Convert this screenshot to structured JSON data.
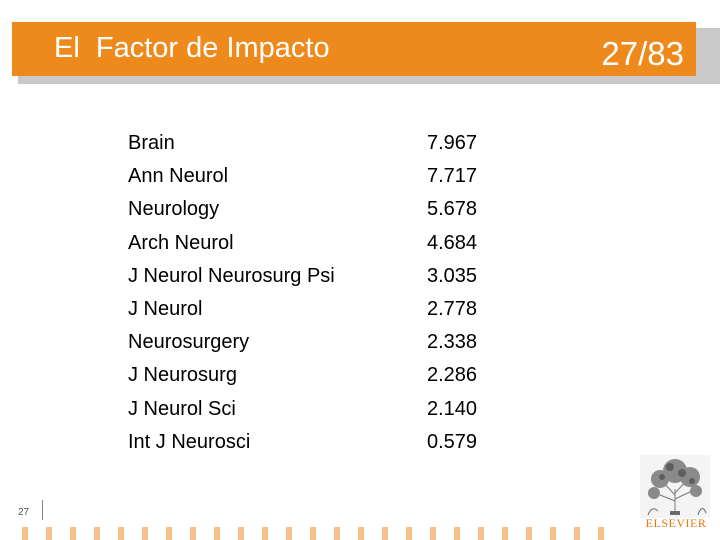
{
  "header": {
    "title": "El  Factor de Impacto",
    "page_count": "27/83"
  },
  "journals": [
    {
      "name": "Brain",
      "impact_factor": "7.967"
    },
    {
      "name": "Ann Neurol",
      "impact_factor": "7.717"
    },
    {
      "name": "Neurology",
      "impact_factor": "5.678"
    },
    {
      "name": "Arch Neurol",
      "impact_factor": "4.684"
    },
    {
      "name": "J Neurol Neurosurg Psi",
      "impact_factor": "3.035"
    },
    {
      "name": "J Neurol",
      "impact_factor": "2.778"
    },
    {
      "name": "Neurosurgery",
      "impact_factor": "2.338"
    },
    {
      "name": "J Neurosurg",
      "impact_factor": "2.286"
    },
    {
      "name": "J Neurol Sci",
      "impact_factor": "2.140"
    },
    {
      "name": "Int J Neurosci",
      "impact_factor": "0.579"
    }
  ],
  "footer": {
    "slide_number": "27",
    "logo_text": "ELSEVIER"
  },
  "colors": {
    "accent": "#ee8a1c",
    "logo": "#e07a1c"
  },
  "icons": {
    "logo": "elsevier-tree-logo"
  }
}
